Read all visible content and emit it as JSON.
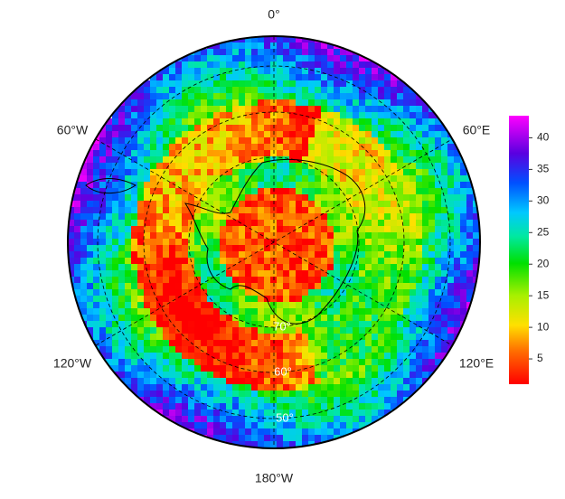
{
  "map": {
    "longitude_labels": [
      "0°",
      "60°E",
      "120°E",
      "180°W",
      "120°W",
      "60°W"
    ],
    "latitude_labels": [
      "70°",
      "60°",
      "50°"
    ],
    "colorbar": {
      "lim": [
        1,
        43.5
      ],
      "ticks": [
        5,
        10,
        15,
        20,
        25,
        30,
        35,
        40
      ]
    }
  }
}
